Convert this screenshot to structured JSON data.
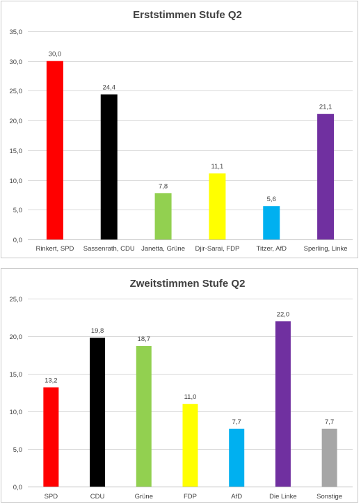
{
  "chart_data": [
    {
      "type": "bar",
      "title": "Erststimmen Stufe Q2",
      "categories": [
        "Rinkert, SPD",
        "Sassenrath, CDU",
        "Janetta, Grüne",
        "Djir-Sarai, FDP",
        "Titzer, AfD",
        "Sperling, Linke"
      ],
      "values": [
        30.0,
        24.4,
        7.8,
        11.1,
        5.6,
        21.1
      ],
      "value_labels": [
        "30,0",
        "24,4",
        "7,8",
        "11,1",
        "5,6",
        "21,1"
      ],
      "colors": [
        "#ff0000",
        "#000000",
        "#92d050",
        "#ffff00",
        "#00b0f0",
        "#7030a0"
      ],
      "ylim": [
        0,
        35
      ],
      "yticks": [
        0,
        5,
        10,
        15,
        20,
        25,
        30,
        35
      ],
      "ytick_labels": [
        "0,0",
        "5,0",
        "10,0",
        "15,0",
        "20,0",
        "25,0",
        "30,0",
        "35,0"
      ],
      "grid": true,
      "xlabel": "",
      "ylabel": ""
    },
    {
      "type": "bar",
      "title": "Zweitstimmen Stufe Q2",
      "categories": [
        "SPD",
        "CDU",
        "Grüne",
        "FDP",
        "AfD",
        "Die Linke",
        "Sonstige"
      ],
      "values": [
        13.2,
        19.8,
        18.7,
        11.0,
        7.7,
        22.0,
        7.7
      ],
      "value_labels": [
        "13,2",
        "19,8",
        "18,7",
        "11,0",
        "7,7",
        "22,0",
        "7,7"
      ],
      "colors": [
        "#ff0000",
        "#000000",
        "#92d050",
        "#ffff00",
        "#00b0f0",
        "#7030a0",
        "#a6a6a6"
      ],
      "ylim": [
        0,
        25
      ],
      "yticks": [
        0,
        5,
        10,
        15,
        20,
        25
      ],
      "ytick_labels": [
        "0,0",
        "5,0",
        "10,0",
        "15,0",
        "20,0",
        "25,0"
      ],
      "grid": true,
      "xlabel": "",
      "ylabel": ""
    }
  ]
}
